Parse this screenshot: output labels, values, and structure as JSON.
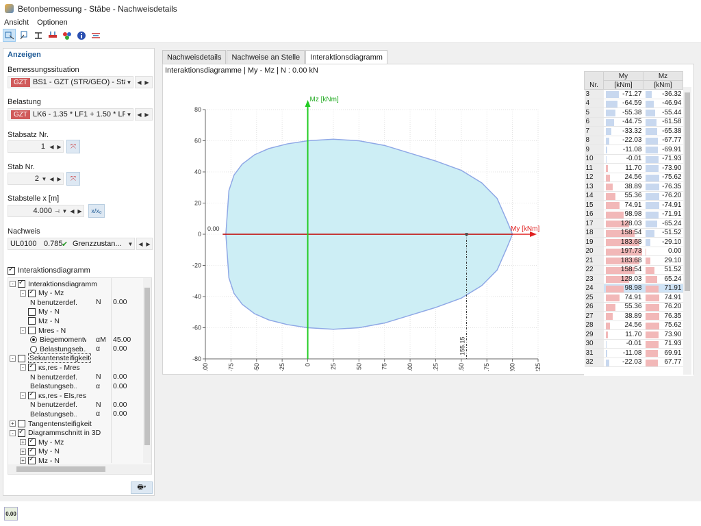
{
  "window": {
    "title": "Betonbemessung - Stäbe - Nachweisdetails"
  },
  "menu": [
    "Ansicht",
    "Optionen"
  ],
  "left": {
    "section_title": "Anzeigen",
    "bemessung_label": "Bemessungssituation",
    "bemessung_tag": "GZT",
    "bemessung_value": "BS1 - GZT (STR/GEO) - Ständig...",
    "belastung_label": "Belastung",
    "belastung_tag": "GZT",
    "belastung_value": "LK6 - 1.35 * LF1 + 1.50 * LF3",
    "stabsatz_label": "Stabsatz Nr.",
    "stabsatz_value": "1",
    "stab_label": "Stab Nr.",
    "stab_value": "2",
    "stabstelle_label": "Stabstelle x [m]",
    "stabstelle_value": "4.000",
    "stabstelle_btn": "x/x₀",
    "nachweis_label": "Nachweis",
    "nachweis_id": "UL0100",
    "nachweis_ratio": "0.785",
    "nachweis_text": "Grenzzustan...",
    "interaktion_checkbox": "Interaktionsdiagramm"
  },
  "tree": [
    {
      "label": "Interaktionsdiagramm",
      "level": 0,
      "exp": "-",
      "chk": true
    },
    {
      "label": "My - Mz",
      "level": 1,
      "exp": "-",
      "chk": true
    },
    {
      "label": "N benutzerdef...",
      "level": 2,
      "sym": "N",
      "val": "0.00"
    },
    {
      "label": "My - N",
      "level": 1,
      "chk": false
    },
    {
      "label": "Mz - N",
      "level": 1,
      "chk": false
    },
    {
      "label": "Mres - N",
      "level": 1,
      "exp": "-",
      "chk": false
    },
    {
      "label": "Biegemomentw...",
      "level": 2,
      "radio": true,
      "sym": "αM",
      "val": "45.00"
    },
    {
      "label": "Belastungseb...",
      "level": 2,
      "radio": false,
      "sym": "α",
      "val": "0.00"
    },
    {
      "label": "Sekantensteifigkeit",
      "level": 0,
      "exp": "-",
      "chk": false,
      "boxed": true
    },
    {
      "label": "κs,res - Mres",
      "level": 1,
      "exp": "-",
      "chk": true
    },
    {
      "label": "N benutzerdef...",
      "level": 2,
      "sym": "N",
      "val": "0.00"
    },
    {
      "label": "Belastungseb...",
      "level": 2,
      "sym": "α",
      "val": "0.00"
    },
    {
      "label": "κs,res - EIs,res",
      "level": 1,
      "exp": "-",
      "chk": true
    },
    {
      "label": "N benutzerdef...",
      "level": 2,
      "sym": "N",
      "val": "0.00"
    },
    {
      "label": "Belastungseb...",
      "level": 2,
      "sym": "α",
      "val": "0.00"
    },
    {
      "label": "Tangentensteifigkeit",
      "level": 0,
      "exp": "+",
      "chk": false
    },
    {
      "label": "Diagrammschnitt in 3D",
      "level": 0,
      "exp": "-",
      "chk": true
    },
    {
      "label": "My - Mz",
      "level": 1,
      "exp": "+",
      "chk": true
    },
    {
      "label": "My - N",
      "level": 1,
      "exp": "+",
      "chk": true
    },
    {
      "label": "Mz - N",
      "level": 1,
      "exp": "+",
      "chk": true
    },
    {
      "label": "Mres - N",
      "level": 1,
      "chk": false
    }
  ],
  "tabs": [
    "Nachweisdetails",
    "Nachweise an Stelle",
    "Interaktionsdiagramm"
  ],
  "diagram_title": "Interaktionsdiagramme | My - Mz | N : 0.00 kN",
  "chart_data": {
    "type": "area",
    "xlabel": "My [kNm]",
    "ylabel": "Mz [kNm]",
    "xlim": [
      -100,
      225
    ],
    "ylim": [
      -80,
      80
    ],
    "xticks": [
      -100,
      -75,
      -50,
      -25,
      0,
      25,
      50,
      75,
      100,
      125,
      150,
      175,
      200,
      225
    ],
    "yticks": [
      -80,
      -60,
      -40,
      -20,
      0,
      20,
      40,
      60,
      80
    ],
    "origin_label": "0.00",
    "marker_label": "155.15",
    "marker_x": 155.15,
    "outline": [
      [
        -80,
        0
      ],
      [
        -77,
        28
      ],
      [
        -72,
        38
      ],
      [
        -64,
        45
      ],
      [
        -52,
        51
      ],
      [
        -38,
        55
      ],
      [
        -20,
        58
      ],
      [
        0,
        60
      ],
      [
        25,
        61
      ],
      [
        50,
        60
      ],
      [
        75,
        57
      ],
      [
        100,
        52
      ],
      [
        125,
        47
      ],
      [
        150,
        41
      ],
      [
        170,
        33
      ],
      [
        185,
        23
      ],
      [
        195,
        8
      ],
      [
        200,
        0
      ],
      [
        195,
        -8
      ],
      [
        185,
        -23
      ],
      [
        170,
        -33
      ],
      [
        150,
        -41
      ],
      [
        125,
        -47
      ],
      [
        100,
        -52
      ],
      [
        75,
        -57
      ],
      [
        50,
        -60
      ],
      [
        25,
        -61
      ],
      [
        0,
        -60
      ],
      [
        -20,
        -58
      ],
      [
        -38,
        -55
      ],
      [
        -52,
        -51
      ],
      [
        -64,
        -45
      ],
      [
        -72,
        -38
      ],
      [
        -77,
        -28
      ],
      [
        -80,
        0
      ]
    ]
  },
  "grid": {
    "head_nr": "Nr.",
    "head_my": "My",
    "head_mz": "Mz",
    "unit": "[kNm]",
    "rows": [
      [
        "3",
        "-71.27",
        "-36.32"
      ],
      [
        "4",
        "-64.59",
        "-46.94"
      ],
      [
        "5",
        "-55.38",
        "-55.44"
      ],
      [
        "6",
        "-44.75",
        "-61.58"
      ],
      [
        "7",
        "-33.32",
        "-65.38"
      ],
      [
        "8",
        "-22.03",
        "-67.77"
      ],
      [
        "9",
        "-11.08",
        "-69.91"
      ],
      [
        "10",
        "-0.01",
        "-71.93"
      ],
      [
        "11",
        "11.70",
        "-73.90"
      ],
      [
        "12",
        "24.56",
        "-75.62"
      ],
      [
        "13",
        "38.89",
        "-76.35"
      ],
      [
        "14",
        "55.36",
        "-76.20"
      ],
      [
        "15",
        "74.91",
        "-74.91"
      ],
      [
        "16",
        "98.98",
        "-71.91"
      ],
      [
        "17",
        "128.03",
        "-65.24"
      ],
      [
        "18",
        "158.54",
        "-51.52"
      ],
      [
        "19",
        "183.68",
        "-29.10"
      ],
      [
        "20",
        "197.73",
        "0.00"
      ],
      [
        "21",
        "183.68",
        "29.10"
      ],
      [
        "22",
        "158.54",
        "51.52"
      ],
      [
        "23",
        "128.03",
        "65.24"
      ],
      [
        "24",
        "98.98",
        "71.91"
      ],
      [
        "25",
        "74.91",
        "74.91"
      ],
      [
        "26",
        "55.36",
        "76.20"
      ],
      [
        "27",
        "38.89",
        "76.35"
      ],
      [
        "28",
        "24.56",
        "75.62"
      ],
      [
        "29",
        "11.70",
        "73.90"
      ],
      [
        "30",
        "-0.01",
        "71.93"
      ],
      [
        "31",
        "-11.08",
        "69.91"
      ],
      [
        "32",
        "-22.03",
        "67.77"
      ]
    ],
    "selected_row": "24"
  },
  "statusbar": {
    "icon_text": "0.00"
  }
}
